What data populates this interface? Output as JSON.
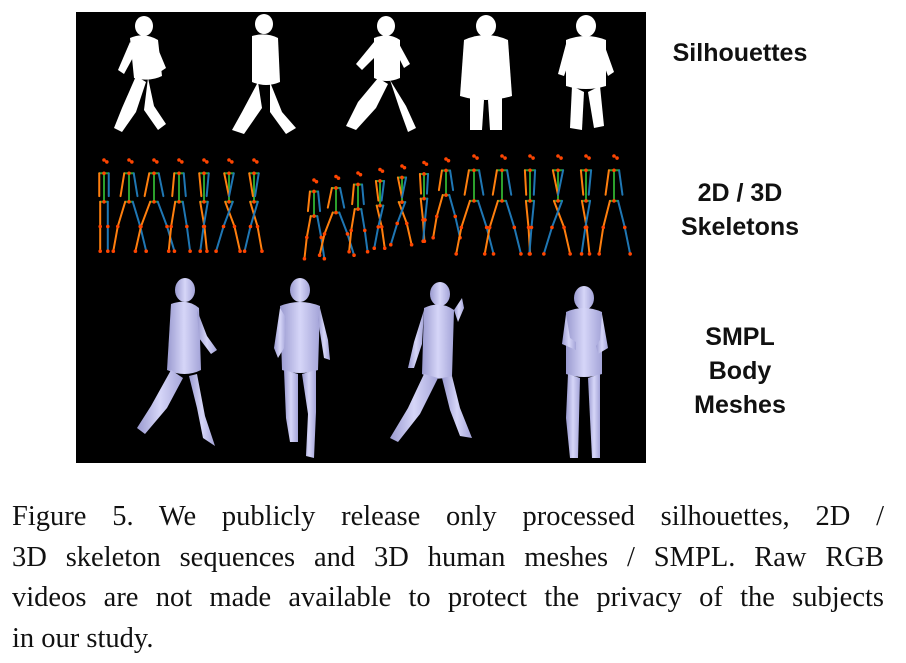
{
  "figure": {
    "row_labels": {
      "silhouettes": [
        "Silhouettes"
      ],
      "skeletons": [
        "2D / 3D",
        "Skeletons"
      ],
      "meshes": [
        "SMPL",
        "Body",
        "Meshes"
      ]
    },
    "colors": {
      "panel_background": "#000000",
      "silhouette": "#ffffff",
      "mesh": "#c8c8f0",
      "skeleton_left": "#ff7f0e",
      "skeleton_right": "#1f77b4",
      "skeleton_torso": "#2ca02c",
      "skeleton_joint": "#ff4500"
    }
  },
  "caption": {
    "lines": [
      "Figure 5.  We publicly release only processed silhouettes, 2D /",
      "3D skeleton sequences and 3D human meshes / SMPL. Raw RGB",
      "videos are not made available to protect the privacy of the subjects",
      "in our study."
    ]
  }
}
